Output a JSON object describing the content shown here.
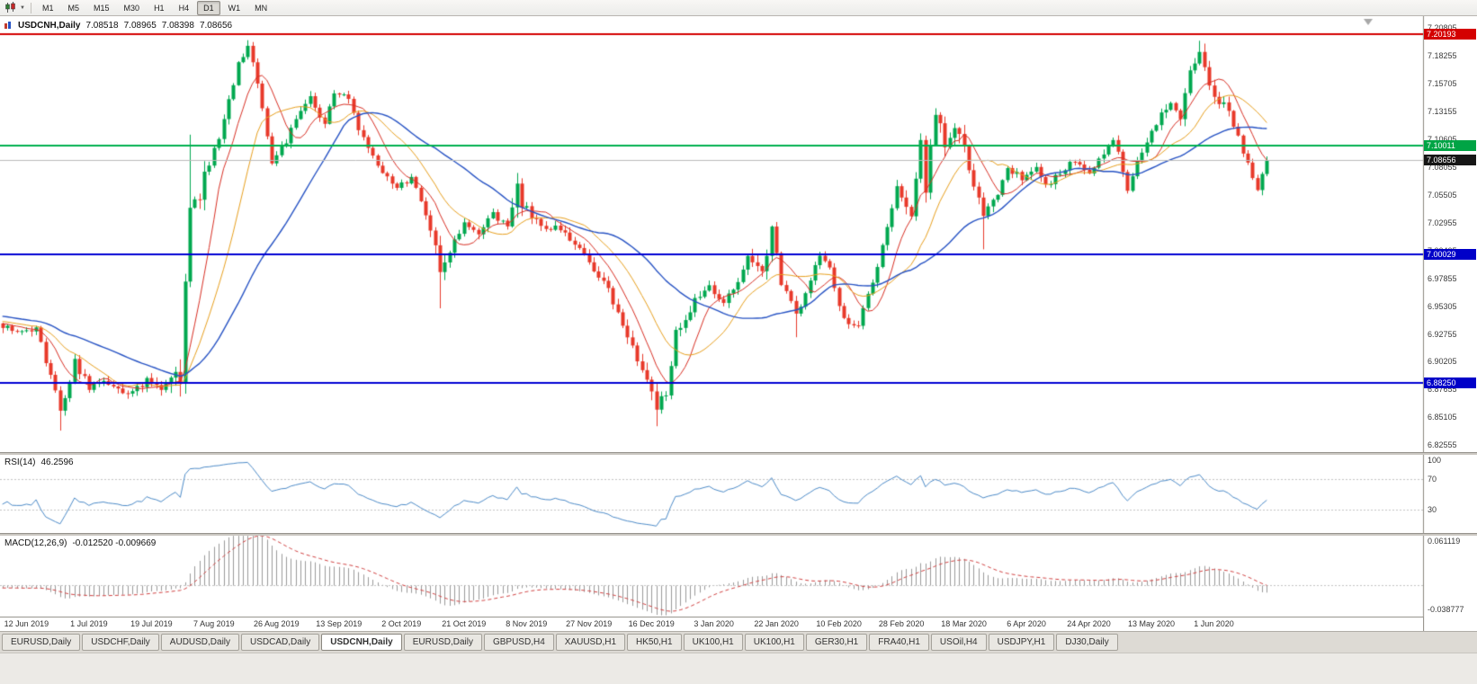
{
  "toolbar": {
    "icons": [
      "candlestick-chart-icon",
      "dropdown-caret-icon"
    ],
    "timeframes": [
      {
        "label": "M1",
        "active": false
      },
      {
        "label": "M5",
        "active": false
      },
      {
        "label": "M15",
        "active": false
      },
      {
        "label": "M30",
        "active": false
      },
      {
        "label": "H1",
        "active": false
      },
      {
        "label": "H4",
        "active": false
      },
      {
        "label": "D1",
        "active": true
      },
      {
        "label": "W1",
        "active": false
      },
      {
        "label": "MN",
        "active": false
      }
    ]
  },
  "chart": {
    "title": {
      "symbol": "USDCNH,Daily",
      "open": "7.08518",
      "high": "7.08965",
      "low": "7.08398",
      "close": "7.08656"
    },
    "price_range": {
      "max": 7.2185,
      "min": 6.8185
    },
    "price_axis_labels": [
      "7.20805",
      "7.18255",
      "7.15705",
      "7.13155",
      "7.10605",
      "7.08055",
      "7.05505",
      "7.02955",
      "7.00405",
      "6.97855",
      "6.95305",
      "6.92755",
      "6.90205",
      "6.87655",
      "6.85105",
      "6.82555"
    ],
    "levels": [
      {
        "name": "resistance-line",
        "price": 7.20193,
        "label": "7.20193",
        "line_color": "#d40000",
        "width": 2,
        "badge_bg": "#d40000"
      },
      {
        "name": "pivot-line-green",
        "price": 7.10011,
        "label": "7.10011",
        "line_color": "#00b14f",
        "width": 2,
        "badge_bg": "#00a445"
      },
      {
        "name": "current-price-line",
        "price": 7.08656,
        "label": "7.08656",
        "line_color": "#bbbbbb",
        "width": 1,
        "badge_bg": "#161616"
      },
      {
        "name": "support-line-1",
        "price": 7.00029,
        "label": "7.00029",
        "line_color": "#0000d4",
        "width": 2,
        "badge_bg": "#0000c8"
      },
      {
        "name": "support-line-2",
        "price": 6.8825,
        "label": "6.88250",
        "line_color": "#0000d4",
        "width": 2,
        "badge_bg": "#0000c8"
      }
    ]
  },
  "rsi": {
    "label": "RSI(14)",
    "value": "46.2596",
    "period": 14,
    "line_color": "#4e8cc9",
    "guide_levels": [
      70,
      30
    ],
    "axis_labels": [
      {
        "text": "100",
        "value": 100
      },
      {
        "text": "70",
        "value": 70
      },
      {
        "text": "30",
        "value": 30
      }
    ]
  },
  "macd": {
    "label": "MACD(12,26,9)",
    "values_text": "-0.012520 -0.009669",
    "main_value": -0.01252,
    "signal_value": -0.009669,
    "fast_period": 12,
    "slow_period": 26,
    "signal_period": 9,
    "range": {
      "max": 0.061119,
      "min": -0.038777
    },
    "axis_labels": [
      {
        "text": "0.061119",
        "value": 0.061119
      },
      {
        "text": "-0.038777",
        "value": -0.038777
      }
    ],
    "histogram_color": "#9a9a9a",
    "signal_color": "#d24343"
  },
  "chart_data": {
    "type": "candlestick",
    "symbol": "USDCNH",
    "timeframe": "Daily",
    "ohlc_current": {
      "open": 7.08518,
      "high": 7.08965,
      "low": 7.08398,
      "close": 7.08656
    },
    "bars_count": 264,
    "total_slots": 296,
    "warmup": 60,
    "seed": 11,
    "noise": 0.0034,
    "wick": 0.0042,
    "clamp": {
      "high": 7.1975,
      "low": 6.839
    },
    "last_close": 7.08656,
    "up_color": "#00a84f",
    "down_color": "#e8392a",
    "moving_averages": [
      {
        "period": 8,
        "color": "#d93025",
        "width": 1
      },
      {
        "period": 16,
        "color": "#e8a01e",
        "width": 1
      },
      {
        "period": 34,
        "color": "#2753c4",
        "width": 1.4
      }
    ],
    "price_anchors": [
      [
        -55,
        6.975
      ],
      [
        -25,
        6.948
      ],
      [
        0,
        6.936
      ],
      [
        5,
        6.93
      ],
      [
        7,
        6.932
      ],
      [
        10,
        6.89
      ],
      [
        12,
        6.856
      ],
      [
        15,
        6.902
      ],
      [
        18,
        6.878
      ],
      [
        21,
        6.886
      ],
      [
        25,
        6.872
      ],
      [
        30,
        6.884
      ],
      [
        34,
        6.879
      ],
      [
        37,
        6.892
      ],
      [
        39,
        7.04
      ],
      [
        41,
        7.058
      ],
      [
        44,
        7.095
      ],
      [
        47,
        7.14
      ],
      [
        49,
        7.175
      ],
      [
        51,
        7.188
      ],
      [
        53,
        7.16
      ],
      [
        56,
        7.085
      ],
      [
        59,
        7.105
      ],
      [
        62,
        7.13
      ],
      [
        64,
        7.145
      ],
      [
        67,
        7.118
      ],
      [
        69,
        7.15
      ],
      [
        72,
        7.142
      ],
      [
        74,
        7.112
      ],
      [
        77,
        7.092
      ],
      [
        79,
        7.078
      ],
      [
        82,
        7.062
      ],
      [
        85,
        7.072
      ],
      [
        88,
        7.04
      ],
      [
        91,
        6.988
      ],
      [
        94,
        7.012
      ],
      [
        96,
        7.028
      ],
      [
        99,
        7.018
      ],
      [
        102,
        7.038
      ],
      [
        105,
        7.028
      ],
      [
        107,
        7.058
      ],
      [
        109,
        7.04
      ],
      [
        112,
        7.028
      ],
      [
        116,
        7.022
      ],
      [
        120,
        7.005
      ],
      [
        124,
        6.982
      ],
      [
        127,
        6.958
      ],
      [
        131,
        6.912
      ],
      [
        134,
        6.882
      ],
      [
        136,
        6.858
      ],
      [
        138,
        6.875
      ],
      [
        140,
        6.928
      ],
      [
        144,
        6.958
      ],
      [
        147,
        6.972
      ],
      [
        150,
        6.958
      ],
      [
        153,
        6.972
      ],
      [
        155,
        6.998
      ],
      [
        158,
        6.988
      ],
      [
        160,
        7.022
      ],
      [
        162,
        6.975
      ],
      [
        165,
        6.945
      ],
      [
        167,
        6.962
      ],
      [
        170,
        7.002
      ],
      [
        172,
        6.985
      ],
      [
        175,
        6.942
      ],
      [
        178,
        6.935
      ],
      [
        181,
        6.975
      ],
      [
        184,
        7.022
      ],
      [
        186,
        7.062
      ],
      [
        189,
        7.035
      ],
      [
        191,
        7.108
      ],
      [
        192,
        7.058
      ],
      [
        194,
        7.135
      ],
      [
        196,
        7.092
      ],
      [
        198,
        7.122
      ],
      [
        200,
        7.098
      ],
      [
        202,
        7.062
      ],
      [
        204,
        7.035
      ],
      [
        207,
        7.058
      ],
      [
        209,
        7.082
      ],
      [
        212,
        7.068
      ],
      [
        215,
        7.082
      ],
      [
        217,
        7.062
      ],
      [
        220,
        7.075
      ],
      [
        223,
        7.088
      ],
      [
        226,
        7.072
      ],
      [
        229,
        7.095
      ],
      [
        231,
        7.108
      ],
      [
        234,
        7.062
      ],
      [
        237,
        7.095
      ],
      [
        240,
        7.122
      ],
      [
        243,
        7.138
      ],
      [
        245,
        7.128
      ],
      [
        247,
        7.168
      ],
      [
        249,
        7.182
      ],
      [
        251,
        7.152
      ],
      [
        254,
        7.138
      ],
      [
        256,
        7.118
      ],
      [
        259,
        7.082
      ],
      [
        261,
        7.062
      ],
      [
        262,
        7.075
      ],
      [
        263,
        7.0866
      ]
    ],
    "wick_overrides": [
      [
        51,
        "h",
        7.1965
      ],
      [
        249,
        "h",
        7.196
      ],
      [
        136,
        "l",
        6.843
      ],
      [
        12,
        "l",
        6.839
      ],
      [
        91,
        "l",
        6.951
      ],
      [
        165,
        "l",
        6.9245
      ],
      [
        204,
        "l",
        7.005
      ],
      [
        39,
        "h",
        7.11
      ],
      [
        107,
        "h",
        7.072
      ]
    ],
    "vol_zones": [
      [
        39,
        18,
        2.4
      ],
      [
        195,
        60,
        1.6
      ],
      [
        136,
        40,
        0.9
      ],
      [
        249,
        30,
        0.7
      ],
      [
        107,
        6,
        1.2
      ],
      [
        158,
        6,
        1.2
      ],
      [
        91,
        6,
        1.0
      ]
    ],
    "date_labels": [
      {
        "bar": 5,
        "text": "12 Jun 2019"
      },
      {
        "bar": 18,
        "text": "1 Jul 2019"
      },
      {
        "bar": 31,
        "text": "19 Jul 2019"
      },
      {
        "bar": 44,
        "text": "7 Aug 2019"
      },
      {
        "bar": 57,
        "text": "26 Aug 2019"
      },
      {
        "bar": 70,
        "text": "13 Sep 2019"
      },
      {
        "bar": 83,
        "text": "2 Oct 2019"
      },
      {
        "bar": 96,
        "text": "21 Oct 2019"
      },
      {
        "bar": 109,
        "text": "8 Nov 2019"
      },
      {
        "bar": 122,
        "text": "27 Nov 2019"
      },
      {
        "bar": 135,
        "text": "16 Dec 2019"
      },
      {
        "bar": 148,
        "text": "3 Jan 2020"
      },
      {
        "bar": 161,
        "text": "22 Jan 2020"
      },
      {
        "bar": 174,
        "text": "10 Feb 2020"
      },
      {
        "bar": 187,
        "text": "28 Feb 2020"
      },
      {
        "bar": 200,
        "text": "18 Mar 2020"
      },
      {
        "bar": 213,
        "text": "6 Apr 2020"
      },
      {
        "bar": 226,
        "text": "24 Apr 2020"
      },
      {
        "bar": 239,
        "text": "13 May 2020"
      },
      {
        "bar": 252,
        "text": "1 Jun 2020"
      }
    ]
  },
  "tabs": [
    {
      "label": "EURUSD,Daily",
      "active": false
    },
    {
      "label": "USDCHF,Daily",
      "active": false
    },
    {
      "label": "AUDUSD,Daily",
      "active": false
    },
    {
      "label": "USDCAD,Daily",
      "active": false
    },
    {
      "label": "USDCNH,Daily",
      "active": true
    },
    {
      "label": "EURUSD,Daily",
      "active": false
    },
    {
      "label": "GBPUSD,H4",
      "active": false
    },
    {
      "label": "XAUUSD,H1",
      "active": false
    },
    {
      "label": "HK50,H1",
      "active": false
    },
    {
      "label": "UK100,H1",
      "active": false
    },
    {
      "label": "UK100,H1",
      "active": false
    },
    {
      "label": "GER30,H1",
      "active": false
    },
    {
      "label": "FRA40,H1",
      "active": false
    },
    {
      "label": "USOil,H4",
      "active": false
    },
    {
      "label": "USDJPY,H1",
      "active": false
    },
    {
      "label": "DJ30,Daily",
      "active": false
    }
  ]
}
